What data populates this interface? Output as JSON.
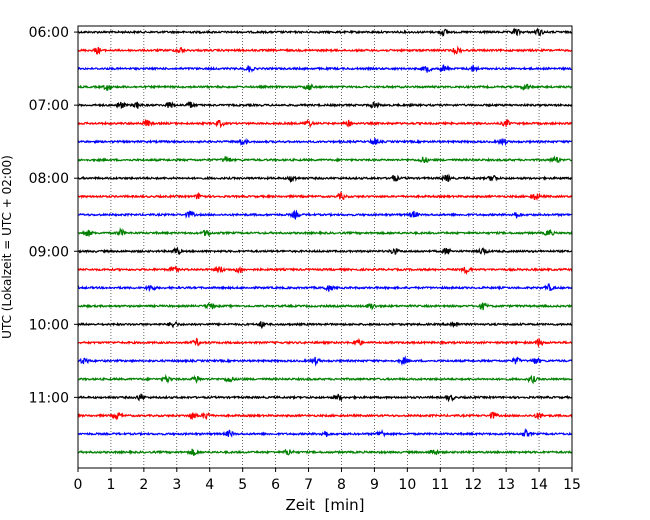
{
  "chart_data": {
    "type": "line",
    "xlabel": "Zeit  [min]",
    "ylabel": "UTC (Lokalzeit = UTC + 02:00)",
    "xlim": [
      0,
      15
    ],
    "x_ticks": [
      0,
      1,
      2,
      3,
      4,
      5,
      6,
      7,
      8,
      9,
      10,
      11,
      12,
      13,
      14,
      15
    ],
    "x_tick_labels": [
      "0",
      "1",
      "2",
      "3",
      "4",
      "5",
      "6",
      "7",
      "8",
      "9",
      "10",
      "11",
      "12",
      "13",
      "14",
      "15"
    ],
    "y_ticks": [
      "06:00",
      "07:00",
      "08:00",
      "09:00",
      "10:00",
      "11:00"
    ],
    "grid": "vertical dotted lines at every minute",
    "trace_colors": [
      "#000000",
      "#ff0000",
      "#0000ff",
      "#008000"
    ],
    "traces": [
      {
        "start": "06:00",
        "events": [
          11.1,
          13.3,
          14.0
        ]
      },
      {
        "start": "06:15",
        "events": [
          11.5,
          0.6,
          3.1
        ]
      },
      {
        "start": "06:30",
        "events": [
          10.6,
          11.1,
          5.2,
          12.0
        ]
      },
      {
        "start": "06:45",
        "events": [
          13.6,
          7.0,
          0.9
        ]
      },
      {
        "start": "07:00",
        "events": [
          1.3,
          1.8,
          2.8,
          3.4,
          9.0
        ]
      },
      {
        "start": "07:15",
        "events": [
          2.1,
          4.3,
          7.0,
          13.0,
          8.2
        ]
      },
      {
        "start": "07:30",
        "events": [
          9.0,
          12.9,
          5.0
        ]
      },
      {
        "start": "07:45",
        "events": [
          4.5,
          14.5,
          10.5
        ]
      },
      {
        "start": "08:00",
        "events": [
          6.5,
          11.2,
          12.6,
          9.6
        ]
      },
      {
        "start": "08:15",
        "events": [
          3.7,
          13.9,
          8.0
        ]
      },
      {
        "start": "08:30",
        "events": [
          3.4,
          6.6,
          13.3,
          10.2
        ]
      },
      {
        "start": "08:45",
        "events": [
          0.3,
          1.3,
          3.9,
          14.3
        ]
      },
      {
        "start": "09:00",
        "events": [
          3.0,
          9.6,
          11.2,
          12.3
        ]
      },
      {
        "start": "09:15",
        "events": [
          2.9,
          4.3,
          4.9,
          11.8
        ]
      },
      {
        "start": "09:30",
        "events": [
          14.3,
          7.6,
          2.2
        ]
      },
      {
        "start": "09:45",
        "events": [
          4.0,
          8.9,
          12.3
        ]
      },
      {
        "start": "10:00",
        "events": [
          2.9,
          5.6,
          11.4
        ]
      },
      {
        "start": "10:15",
        "events": [
          3.6,
          14.0,
          8.5
        ]
      },
      {
        "start": "10:30",
        "events": [
          0.2,
          7.2,
          9.9,
          13.3,
          13.9
        ]
      },
      {
        "start": "10:45",
        "events": [
          2.7,
          3.6,
          4.6,
          13.8
        ]
      },
      {
        "start": "11:00",
        "events": [
          11.3,
          7.9,
          1.9
        ]
      },
      {
        "start": "11:15",
        "events": [
          1.2,
          3.5,
          3.9,
          12.6,
          14.0
        ]
      },
      {
        "start": "11:30",
        "events": [
          7.5,
          4.6,
          13.6,
          9.2
        ]
      },
      {
        "start": "11:45",
        "events": [
          3.5,
          10.8,
          6.4
        ]
      }
    ]
  }
}
